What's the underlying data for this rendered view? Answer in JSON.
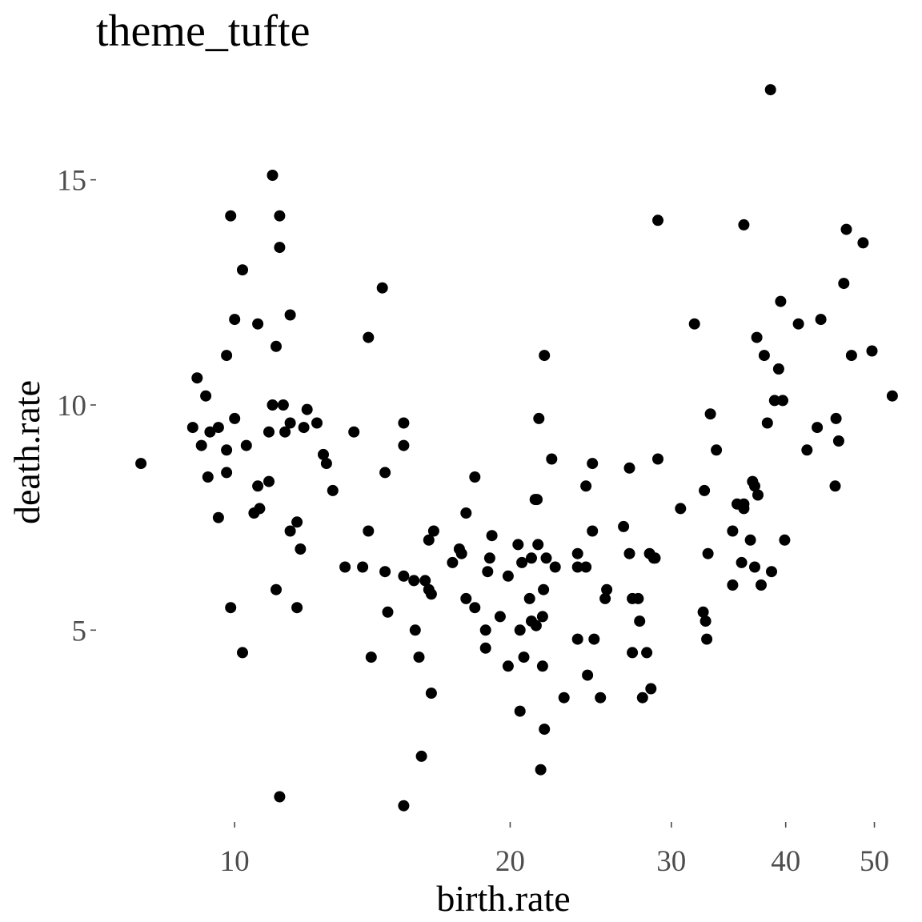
{
  "chart_data": {
    "type": "scatter",
    "title": "theme_tufte",
    "xlabel": "birth.rate",
    "ylabel": "death.rate",
    "x_scale": "log",
    "xlim": [
      7.2,
      52
    ],
    "ylim": [
      0.9,
      17.5
    ],
    "x_ticks": [
      10,
      20,
      30,
      40,
      50
    ],
    "y_ticks": [
      5,
      10,
      15
    ],
    "grid": false,
    "legend": "none",
    "point_color": "#000000",
    "points": [
      [
        7.9,
        8.7
      ],
      [
        9.0,
        9.5
      ],
      [
        9.1,
        10.6
      ],
      [
        9.2,
        9.1
      ],
      [
        9.3,
        10.2
      ],
      [
        9.35,
        8.4
      ],
      [
        9.4,
        9.4
      ],
      [
        9.6,
        7.5
      ],
      [
        9.6,
        9.5
      ],
      [
        9.8,
        11.1
      ],
      [
        9.8,
        9.0
      ],
      [
        9.8,
        8.5
      ],
      [
        9.9,
        14.2
      ],
      [
        9.9,
        5.5
      ],
      [
        10.0,
        11.9
      ],
      [
        10.0,
        9.7
      ],
      [
        10.2,
        13.0
      ],
      [
        10.2,
        4.5
      ],
      [
        10.3,
        9.1
      ],
      [
        10.5,
        7.6
      ],
      [
        10.6,
        11.8
      ],
      [
        10.6,
        8.2
      ],
      [
        10.65,
        7.7
      ],
      [
        10.9,
        8.3
      ],
      [
        10.9,
        9.4
      ],
      [
        11.0,
        15.1
      ],
      [
        11.0,
        10.0
      ],
      [
        11.1,
        11.3
      ],
      [
        11.1,
        5.9
      ],
      [
        11.2,
        14.2
      ],
      [
        11.2,
        13.5
      ],
      [
        11.2,
        1.3
      ],
      [
        11.3,
        10.0
      ],
      [
        11.35,
        9.4
      ],
      [
        11.5,
        12.0
      ],
      [
        11.5,
        9.6
      ],
      [
        11.5,
        7.2
      ],
      [
        11.7,
        7.4
      ],
      [
        11.7,
        5.5
      ],
      [
        11.8,
        6.8
      ],
      [
        11.9,
        9.5
      ],
      [
        12.0,
        9.9
      ],
      [
        12.3,
        9.6
      ],
      [
        12.5,
        8.9
      ],
      [
        12.6,
        8.7
      ],
      [
        12.8,
        8.1
      ],
      [
        13.2,
        6.4
      ],
      [
        13.5,
        9.4
      ],
      [
        13.8,
        6.4
      ],
      [
        14.0,
        11.5
      ],
      [
        14.0,
        7.2
      ],
      [
        14.1,
        4.4
      ],
      [
        14.5,
        12.6
      ],
      [
        14.6,
        8.5
      ],
      [
        14.6,
        6.3
      ],
      [
        14.7,
        5.4
      ],
      [
        15.3,
        9.6
      ],
      [
        15.3,
        9.1
      ],
      [
        15.3,
        6.2
      ],
      [
        15.3,
        1.1
      ],
      [
        15.7,
        6.1
      ],
      [
        15.75,
        5.0
      ],
      [
        15.9,
        4.4
      ],
      [
        16.0,
        2.2
      ],
      [
        16.15,
        6.1
      ],
      [
        16.3,
        7.0
      ],
      [
        16.3,
        5.9
      ],
      [
        16.4,
        5.8
      ],
      [
        16.4,
        3.6
      ],
      [
        16.5,
        7.2
      ],
      [
        17.3,
        6.5
      ],
      [
        17.6,
        6.8
      ],
      [
        17.7,
        6.7
      ],
      [
        17.9,
        7.6
      ],
      [
        17.9,
        5.7
      ],
      [
        18.3,
        8.4
      ],
      [
        18.3,
        5.5
      ],
      [
        18.8,
        5.0
      ],
      [
        18.8,
        4.6
      ],
      [
        18.9,
        6.3
      ],
      [
        19.0,
        6.6
      ],
      [
        19.1,
        7.1
      ],
      [
        19.5,
        5.3
      ],
      [
        19.9,
        6.2
      ],
      [
        19.9,
        4.2
      ],
      [
        20.4,
        6.9
      ],
      [
        20.5,
        5.0
      ],
      [
        20.5,
        3.2
      ],
      [
        20.6,
        6.5
      ],
      [
        20.7,
        4.4
      ],
      [
        21.0,
        5.7
      ],
      [
        21.1,
        6.6
      ],
      [
        21.1,
        5.2
      ],
      [
        21.3,
        7.9
      ],
      [
        21.35,
        5.1
      ],
      [
        21.4,
        7.9
      ],
      [
        21.45,
        6.9
      ],
      [
        21.5,
        9.7
      ],
      [
        21.6,
        1.9
      ],
      [
        21.7,
        4.2
      ],
      [
        21.7,
        5.3
      ],
      [
        21.75,
        5.9
      ],
      [
        21.8,
        11.1
      ],
      [
        21.8,
        2.8
      ],
      [
        21.9,
        6.6
      ],
      [
        22.2,
        8.8
      ],
      [
        22.4,
        6.4
      ],
      [
        22.9,
        3.5
      ],
      [
        23.7,
        6.7
      ],
      [
        23.7,
        6.4
      ],
      [
        23.7,
        4.8
      ],
      [
        24.2,
        8.2
      ],
      [
        24.2,
        6.4
      ],
      [
        24.3,
        4.0
      ],
      [
        24.6,
        8.7
      ],
      [
        24.6,
        7.2
      ],
      [
        24.7,
        4.8
      ],
      [
        25.1,
        3.5
      ],
      [
        25.4,
        5.7
      ],
      [
        25.5,
        5.9
      ],
      [
        26.6,
        7.3
      ],
      [
        27.0,
        8.6
      ],
      [
        27.0,
        6.7
      ],
      [
        27.2,
        5.7
      ],
      [
        27.2,
        4.5
      ],
      [
        27.6,
        5.7
      ],
      [
        27.7,
        5.2
      ],
      [
        27.9,
        3.5
      ],
      [
        28.2,
        4.5
      ],
      [
        28.4,
        6.7
      ],
      [
        28.5,
        3.7
      ],
      [
        28.7,
        6.6
      ],
      [
        28.8,
        6.6
      ],
      [
        29.0,
        8.8
      ],
      [
        29.0,
        14.1
      ],
      [
        30.7,
        7.7
      ],
      [
        31.8,
        11.8
      ],
      [
        32.5,
        5.4
      ],
      [
        32.6,
        8.1
      ],
      [
        32.7,
        5.2
      ],
      [
        32.8,
        4.8
      ],
      [
        32.9,
        6.7
      ],
      [
        33.1,
        9.8
      ],
      [
        33.6,
        9.0
      ],
      [
        35.0,
        7.2
      ],
      [
        35.0,
        6.0
      ],
      [
        35.4,
        7.8
      ],
      [
        35.8,
        6.5
      ],
      [
        36.0,
        7.8
      ],
      [
        36.0,
        7.7
      ],
      [
        36.0,
        14.0
      ],
      [
        36.6,
        7.0
      ],
      [
        36.8,
        8.3
      ],
      [
        37.0,
        6.4
      ],
      [
        37.0,
        8.2
      ],
      [
        37.2,
        11.5
      ],
      [
        37.3,
        8.0
      ],
      [
        37.6,
        6.0
      ],
      [
        37.9,
        11.1
      ],
      [
        38.2,
        9.6
      ],
      [
        38.5,
        17.0
      ],
      [
        38.6,
        6.3
      ],
      [
        38.9,
        10.1
      ],
      [
        39.3,
        10.8
      ],
      [
        39.5,
        12.3
      ],
      [
        39.7,
        10.1
      ],
      [
        39.9,
        7.0
      ],
      [
        41.3,
        11.8
      ],
      [
        42.2,
        9.0
      ],
      [
        43.3,
        9.5
      ],
      [
        43.7,
        11.9
      ],
      [
        45.3,
        8.2
      ],
      [
        45.4,
        9.7
      ],
      [
        45.7,
        9.2
      ],
      [
        46.3,
        12.7
      ],
      [
        46.6,
        13.9
      ],
      [
        47.2,
        11.1
      ],
      [
        48.6,
        13.6
      ],
      [
        49.7,
        11.2
      ],
      [
        52.3,
        10.2
      ]
    ]
  }
}
